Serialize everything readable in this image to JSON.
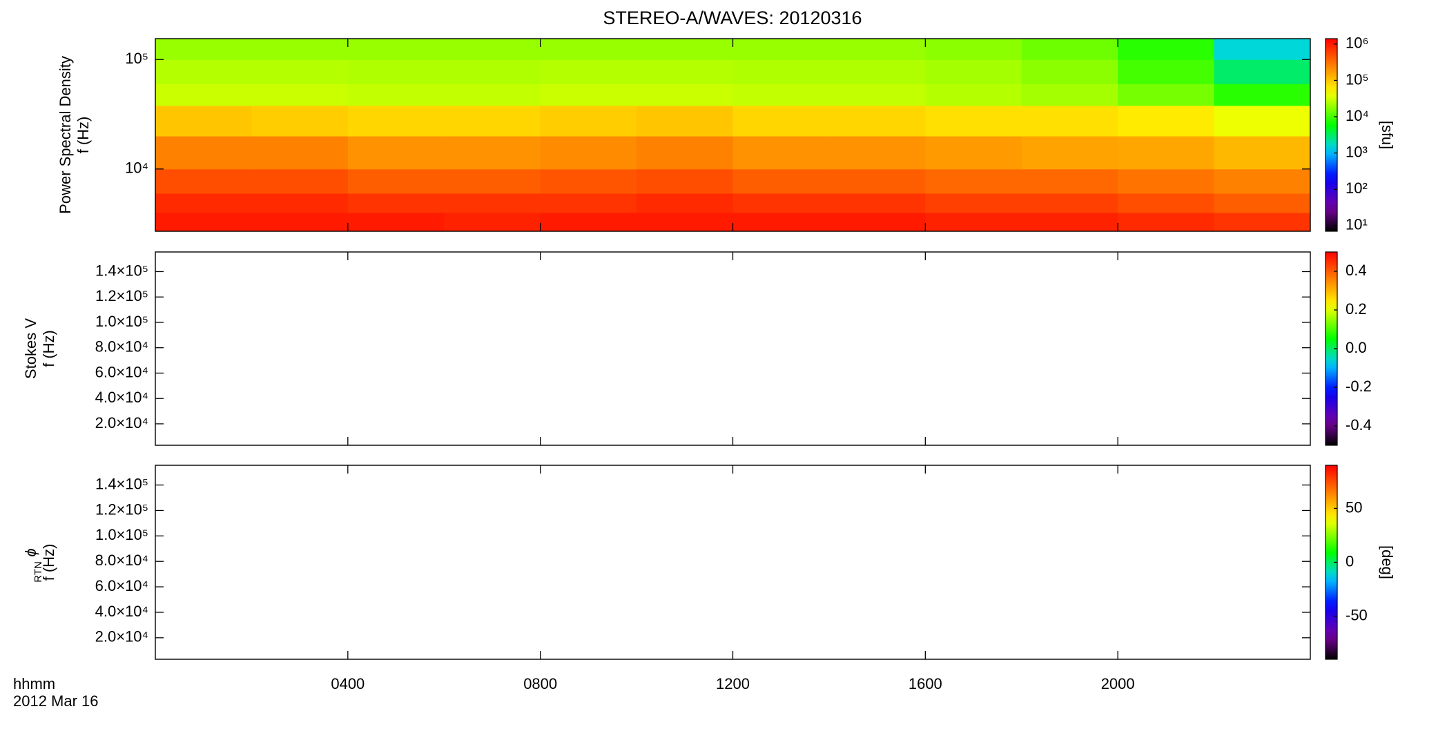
{
  "title": "STEREO-A/WAVES: 20120316",
  "chart_data": [
    {
      "type": "heatmap",
      "ylabel": [
        "Power Spectral Density",
        "f (Hz)"
      ],
      "ylog": true,
      "ylim": [
        2700,
        155000
      ],
      "yticks": [
        {
          "value": 10000,
          "label": "10⁴"
        },
        {
          "value": 100000,
          "label": "10⁵"
        }
      ],
      "x_bins": [
        0,
        2,
        4,
        6,
        8,
        10,
        12,
        14,
        16,
        18,
        20,
        22,
        24
      ],
      "y_bins": [
        2700,
        4000,
        6000,
        10000,
        20000,
        38000,
        60000,
        100000,
        155000
      ],
      "z": [
        [
          1000000,
          1000000,
          1000000,
          900000,
          1000000,
          1000000,
          1000000,
          1000000,
          900000,
          900000,
          800000,
          700000
        ],
        [
          800000,
          800000,
          700000,
          700000,
          700000,
          800000,
          700000,
          700000,
          600000,
          600000,
          500000,
          400000
        ],
        [
          500000,
          500000,
          400000,
          400000,
          450000,
          500000,
          400000,
          400000,
          350000,
          350000,
          300000,
          250000
        ],
        [
          250000,
          250000,
          200000,
          200000,
          220000,
          250000,
          200000,
          200000,
          180000,
          160000,
          150000,
          120000
        ],
        [
          100000,
          90000,
          80000,
          80000,
          90000,
          100000,
          80000,
          80000,
          70000,
          70000,
          60000,
          40000
        ],
        [
          30000,
          30000,
          28000,
          28000,
          30000,
          30000,
          28000,
          28000,
          25000,
          22000,
          15000,
          8000
        ],
        [
          25000,
          25000,
          24000,
          24000,
          25000,
          25000,
          24000,
          24000,
          22000,
          18000,
          10000,
          3000
        ],
        [
          20000,
          20000,
          20000,
          20000,
          20000,
          20000,
          20000,
          20000,
          18000,
          14000,
          8000,
          1500
        ]
      ],
      "colormap": "rainbow",
      "zlog": true,
      "zlim": [
        7,
        1410000
      ],
      "zticks": [
        {
          "value": 10,
          "label": "10¹"
        },
        {
          "value": 100,
          "label": "10²"
        },
        {
          "value": 1000,
          "label": "10³"
        },
        {
          "value": 10000,
          "label": "10⁴"
        },
        {
          "value": 100000,
          "label": "10⁵"
        },
        {
          "value": 1000000,
          "label": "10⁶"
        }
      ],
      "zlabel": "[sfu]"
    },
    {
      "type": "heatmap",
      "ylabel": [
        "Stokes V",
        "f (Hz)"
      ],
      "ylog": false,
      "ylim": [
        3100,
        155500
      ],
      "yticks": [
        {
          "value": 20000,
          "label": "2.0×10⁴"
        },
        {
          "value": 40000,
          "label": "4.0×10⁴"
        },
        {
          "value": 60000,
          "label": "6.0×10⁴"
        },
        {
          "value": 80000,
          "label": "8.0×10⁴"
        },
        {
          "value": 100000,
          "label": "1.0×10⁵"
        },
        {
          "value": 120000,
          "label": "1.2×10⁵"
        },
        {
          "value": 140000,
          "label": "1.4×10⁵"
        }
      ],
      "colormap": "rainbow",
      "zlog": false,
      "zlim": [
        -0.5,
        0.5
      ],
      "zticks": [
        -0.4,
        -0.2,
        {
          "value": 0,
          "label": "0.0"
        },
        0.2,
        0.4
      ]
    },
    {
      "type": "heatmap",
      "ylabel_symbol": "ϕ",
      "ylabel_subscript": "RTN",
      "ylabel": [
        "f (Hz)"
      ],
      "ylog": false,
      "ylim": [
        3100,
        155500
      ],
      "yticks": [
        {
          "value": 20000,
          "label": "2.0×10⁴"
        },
        {
          "value": 40000,
          "label": "4.0×10⁴"
        },
        {
          "value": 60000,
          "label": "6.0×10⁴"
        },
        {
          "value": 80000,
          "label": "8.0×10⁴"
        },
        {
          "value": 100000,
          "label": "1.0×10⁵"
        },
        {
          "value": 120000,
          "label": "1.2×10⁵"
        },
        {
          "value": 140000,
          "label": "1.4×10⁵"
        }
      ],
      "colormap": "rainbow",
      "zlog": false,
      "zlim": [
        -90,
        90
      ],
      "zticks": [
        -50,
        0,
        50
      ],
      "zlabel": "[deg]",
      "xlim": [
        0,
        24
      ],
      "xticks": [
        {
          "value": 4,
          "label": "0400"
        },
        {
          "value": 8,
          "label": "0800"
        },
        {
          "value": 12,
          "label": "1200"
        },
        {
          "value": 16,
          "label": "1600"
        },
        {
          "value": 20,
          "label": "2000"
        }
      ],
      "xlabel": [
        "hhmm",
        "2012 Mar 16"
      ]
    }
  ]
}
